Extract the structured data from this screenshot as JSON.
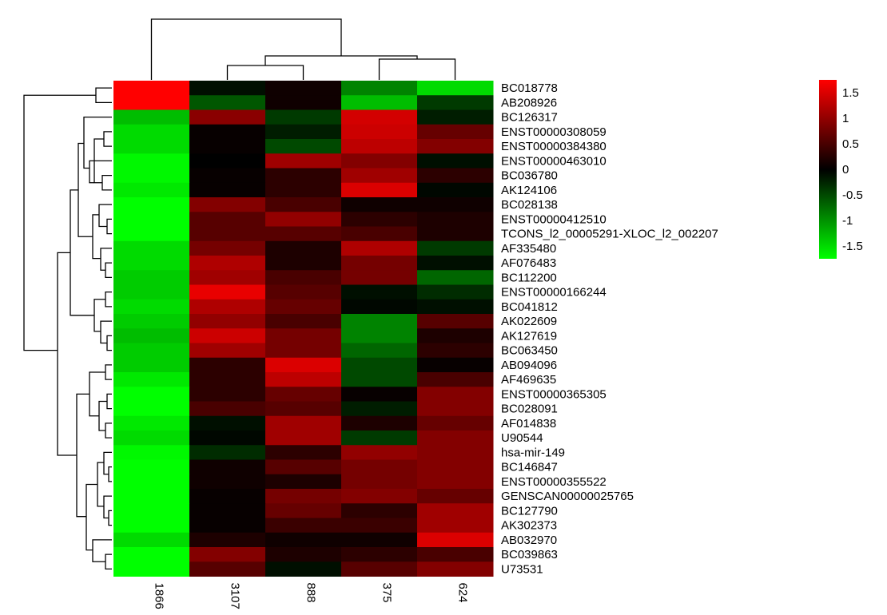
{
  "chart_data": {
    "type": "heatmap",
    "title": "",
    "xlabel": "",
    "ylabel": "",
    "columns": [
      "1866",
      "3107",
      "888",
      "375",
      "624"
    ],
    "rows": [
      "BC018778",
      "AB208926",
      "BC126317",
      "ENST00000308059",
      "ENST00000384380",
      "ENST00000463010",
      "BC036780",
      "AK124106",
      "BC028138",
      "ENST00000412510",
      "TCONS_l2_00005291-XLOC_l2_002207",
      "AF335480",
      "AF076483",
      "BC112200",
      "ENST00000166244",
      "BC041812",
      "AK022609",
      "AK127619",
      "BC063450",
      "AB094096",
      "AF469635",
      "ENST00000365305",
      "BC028091",
      "AF014838",
      "U90544",
      "hsa-mir-149",
      "BC146847",
      "ENST00000355522",
      "GENSCAN00000025765",
      "BC127790",
      "AK302373",
      "AB032970",
      "BC039863",
      "U73531"
    ],
    "values": [
      [
        1.75,
        -0.1,
        0.1,
        -0.9,
        -1.5
      ],
      [
        1.75,
        -0.6,
        0.1,
        -1.3,
        -0.4
      ],
      [
        -1.3,
        0.95,
        -0.4,
        1.45,
        -0.2
      ],
      [
        -1.5,
        0.05,
        -0.2,
        1.4,
        0.7
      ],
      [
        -1.5,
        0.05,
        -0.5,
        1.3,
        0.9
      ],
      [
        -1.7,
        0.0,
        1.1,
        0.9,
        -0.1
      ],
      [
        -1.7,
        0.05,
        0.3,
        1.1,
        0.3
      ],
      [
        -1.6,
        0.05,
        0.3,
        1.5,
        -0.05
      ],
      [
        -1.75,
        0.9,
        0.5,
        0.1,
        0.1
      ],
      [
        -1.75,
        0.6,
        1.0,
        0.3,
        0.2
      ],
      [
        -1.75,
        0.6,
        0.6,
        0.5,
        0.2
      ],
      [
        -1.5,
        0.8,
        0.2,
        1.2,
        -0.4
      ],
      [
        -1.5,
        1.2,
        0.2,
        0.8,
        -0.1
      ],
      [
        -1.4,
        1.1,
        0.5,
        0.8,
        -0.7
      ],
      [
        -1.4,
        1.6,
        0.6,
        -0.1,
        -0.3
      ],
      [
        -1.5,
        1.2,
        0.7,
        -0.05,
        -0.1
      ],
      [
        -1.4,
        1.0,
        0.5,
        -0.9,
        0.6
      ],
      [
        -1.3,
        1.4,
        0.8,
        -0.9,
        0.2
      ],
      [
        -1.4,
        1.1,
        0.8,
        -0.7,
        0.3
      ],
      [
        -1.4,
        0.3,
        1.5,
        -0.5,
        0.05
      ],
      [
        -1.6,
        0.3,
        1.3,
        -0.5,
        0.5
      ],
      [
        -1.75,
        0.3,
        0.7,
        0.05,
        0.9
      ],
      [
        -1.75,
        0.5,
        0.6,
        -0.2,
        0.9
      ],
      [
        -1.6,
        -0.1,
        1.1,
        0.2,
        0.7
      ],
      [
        -1.5,
        -0.05,
        1.1,
        -0.4,
        0.9
      ],
      [
        -1.7,
        -0.3,
        0.3,
        1.0,
        0.9
      ],
      [
        -1.75,
        0.1,
        0.6,
        0.8,
        0.9
      ],
      [
        -1.75,
        0.1,
        0.2,
        0.8,
        0.9
      ],
      [
        -1.75,
        0.05,
        0.8,
        0.9,
        0.7
      ],
      [
        -1.75,
        0.05,
        0.7,
        0.3,
        1.1
      ],
      [
        -1.75,
        0.05,
        0.4,
        0.4,
        1.1
      ],
      [
        -1.5,
        0.2,
        0.1,
        0.1,
        1.5
      ],
      [
        -1.75,
        0.9,
        0.2,
        0.3,
        0.5
      ],
      [
        -1.75,
        0.6,
        -0.1,
        0.6,
        0.9
      ]
    ],
    "color_scale": {
      "low": "#00ff00",
      "mid": "#000000",
      "high": "#ff0000",
      "range": [
        -1.75,
        1.75
      ],
      "ticks": [
        "1.5",
        "1",
        "0.5",
        "0",
        "-0.5",
        "-1",
        "-1.5"
      ],
      "tick_values": [
        1.5,
        1,
        0.5,
        0,
        -0.5,
        -1,
        -1.5
      ]
    },
    "legend_position": "top-right"
  }
}
